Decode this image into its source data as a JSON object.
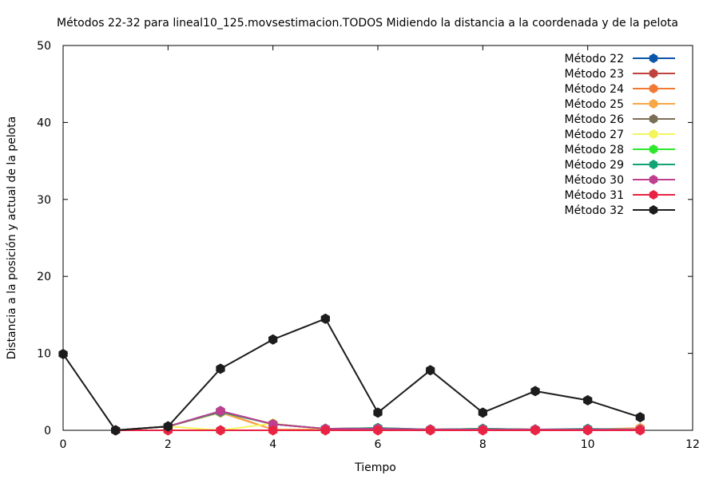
{
  "chart_data": {
    "type": "line",
    "title": "Métodos 22-32 para lineal10_125.movsestimacion.TODOS Midiendo la distancia a la coordenada y de la pelota",
    "xlabel": "Tiempo",
    "ylabel": "Distancia a la posición y actual de la pelota",
    "xlim": [
      0,
      12
    ],
    "ylim": [
      0,
      50
    ],
    "xticks": [
      0,
      2,
      4,
      6,
      8,
      10,
      12
    ],
    "yticks": [
      0,
      10,
      20,
      30,
      40,
      50
    ],
    "grid": false,
    "legend_position": "top-right",
    "x": [
      1,
      2,
      3,
      4,
      5,
      6,
      7,
      8,
      9,
      10,
      11
    ],
    "series": [
      {
        "name": "Método 22",
        "color": "#0b56a8",
        "x": [
          1,
          2,
          3,
          4,
          5,
          6,
          7,
          8,
          9,
          10,
          11
        ],
        "values": [
          0,
          0.5,
          2.5,
          0.8,
          0.2,
          0.2,
          0.1,
          0.1,
          0.1,
          0.1,
          0.1
        ]
      },
      {
        "name": "Método 23",
        "color": "#c0423c",
        "x": [
          1,
          2,
          3,
          4,
          5,
          6,
          7,
          8,
          9,
          10,
          11
        ],
        "values": [
          0,
          0.5,
          2.4,
          0.8,
          0.2,
          0.3,
          0.1,
          0.2,
          0.1,
          0.1,
          0.1
        ]
      },
      {
        "name": "Método 24",
        "color": "#f07a33",
        "x": [
          1,
          2,
          3,
          4,
          5,
          6,
          7,
          8,
          9,
          10,
          11
        ],
        "values": [
          0,
          0.5,
          2.4,
          0.1,
          0.1,
          0.2,
          0.1,
          0.1,
          0.1,
          0.1,
          0.1
        ]
      },
      {
        "name": "Método 25",
        "color": "#f8a646",
        "x": [
          1,
          2,
          3,
          4,
          5,
          6,
          7,
          8,
          9,
          10,
          11
        ],
        "values": [
          0,
          0.5,
          2.3,
          0.1,
          0.1,
          0.1,
          0.1,
          0.1,
          0.1,
          0.1,
          0.3
        ]
      },
      {
        "name": "Método 26",
        "color": "#7c6f57",
        "x": [
          1,
          2,
          3,
          4,
          5,
          6,
          7,
          8,
          9,
          10,
          11
        ],
        "values": [
          0,
          0.5,
          2.4,
          0.8,
          0.2,
          0.2,
          0.1,
          0.2,
          0.1,
          0.1,
          0.1
        ]
      },
      {
        "name": "Método 27",
        "color": "#f4f55c",
        "x": [
          1,
          2,
          3,
          4,
          5,
          6,
          7,
          8,
          9,
          10,
          11
        ],
        "values": [
          0,
          0.5,
          0,
          0.9,
          0.1,
          0.1,
          0.1,
          0.1,
          0.1,
          0.1,
          0.1
        ]
      },
      {
        "name": "Método 28",
        "color": "#2ee82e",
        "x": [
          1,
          2,
          3,
          4,
          5,
          6,
          7,
          8,
          9,
          10,
          11
        ],
        "values": [
          0,
          0.5,
          2.4,
          0.8,
          0.2,
          0.2,
          0.1,
          0.1,
          0.1,
          0.1,
          0.1
        ]
      },
      {
        "name": "Método 29",
        "color": "#13a475",
        "x": [
          1,
          2,
          3,
          4,
          5,
          6,
          7,
          8,
          9,
          10,
          11
        ],
        "values": [
          0,
          0.5,
          2.4,
          0.8,
          0.2,
          0.3,
          0.1,
          0.2,
          0.1,
          0.2,
          0.1
        ]
      },
      {
        "name": "Método 30",
        "color": "#be3e8f",
        "x": [
          1,
          2,
          3,
          4,
          5,
          6,
          7,
          8,
          9,
          10,
          11
        ],
        "values": [
          0,
          0.5,
          2.5,
          0.8,
          0.2,
          0.2,
          0.1,
          0.1,
          0.1,
          0.1,
          0.1
        ]
      },
      {
        "name": "Método 31",
        "color": "#e82343",
        "x": [
          1,
          2,
          3,
          4,
          5,
          6,
          7,
          8,
          9,
          10,
          11
        ],
        "values": [
          0,
          0,
          0,
          0,
          0,
          0,
          0,
          0,
          0,
          0,
          0
        ]
      },
      {
        "name": "Método 32",
        "color": "#1c1c1c",
        "x": [
          0,
          1,
          2,
          3,
          4,
          5,
          6,
          7,
          8,
          9,
          10,
          11
        ],
        "values": [
          9.9,
          0,
          0.5,
          8,
          11.8,
          14.5,
          2.3,
          7.8,
          2.3,
          5.1,
          3.9,
          1.7
        ]
      }
    ]
  }
}
